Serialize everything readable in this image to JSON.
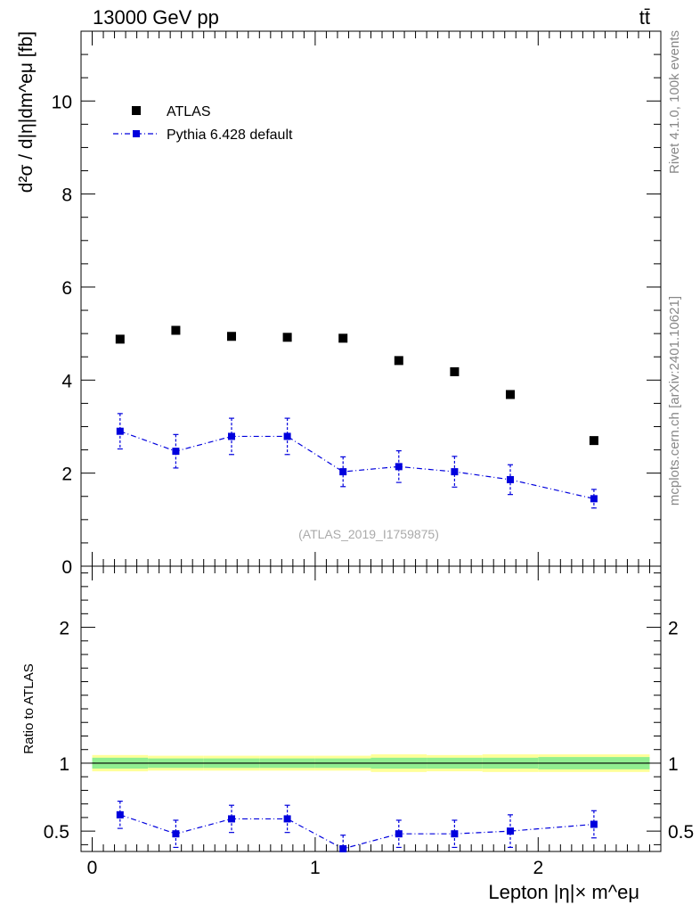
{
  "header": {
    "energy_label": "13000 GeV pp",
    "process_label": "tt̄"
  },
  "side_labels": {
    "rivet": "Rivet 4.1.0,  100k events",
    "source": "mcplots.cern.ch [arXiv:2401.10621]"
  },
  "analysis_label": "(ATLAS_2019_I1759875)",
  "colors": {
    "data": "#000000",
    "mc": "#0000dd",
    "band_inner": "#90ee90",
    "band_outer": "#ffff99"
  },
  "chart_data": [
    {
      "type": "scatter",
      "panel": "main",
      "ylabel": "d²σ / d|η|dm^eμ [fb]",
      "ylim": [
        0,
        11.5
      ],
      "xlim": [
        -0.05,
        2.55
      ],
      "y_ticks": [
        "0",
        "2",
        "4",
        "6",
        "8",
        "10"
      ],
      "legend_position": "top-left",
      "series": [
        {
          "name": "ATLAS",
          "marker": "square",
          "x": [
            0.125,
            0.375,
            0.625,
            0.875,
            1.125,
            1.375,
            1.625,
            1.875,
            2.25
          ],
          "y": [
            4.88,
            5.07,
            4.94,
            4.92,
            4.9,
            4.42,
            4.18,
            3.69,
            2.7
          ]
        },
        {
          "name": "Pythia 6.428 default",
          "marker": "square",
          "line": "dash-dot",
          "x": [
            0.125,
            0.375,
            0.625,
            0.875,
            1.125,
            1.375,
            1.625,
            1.875,
            2.25
          ],
          "y": [
            2.9,
            2.47,
            2.79,
            2.79,
            2.03,
            2.14,
            2.03,
            1.86,
            1.45
          ],
          "yerr": [
            0.38,
            0.36,
            0.39,
            0.39,
            0.32,
            0.34,
            0.33,
            0.32,
            0.2
          ]
        }
      ]
    },
    {
      "type": "scatter",
      "panel": "ratio",
      "ylabel": "Ratio to ATLAS",
      "xlabel": "Lepton |η|× m^eμ",
      "ylim": [
        0.35,
        2.45
      ],
      "xlim": [
        -0.05,
        2.55
      ],
      "y_ticks": [
        "0.5",
        "1",
        "2"
      ],
      "x_ticks": [
        "0",
        "1",
        "2"
      ],
      "band": {
        "x_edges": [
          0,
          0.25,
          0.5,
          0.75,
          1,
          1.25,
          1.5,
          1.75,
          2,
          2.5
        ],
        "inner": [
          0.04,
          0.035,
          0.035,
          0.035,
          0.035,
          0.04,
          0.04,
          0.04,
          0.045
        ],
        "outer": [
          0.06,
          0.055,
          0.055,
          0.055,
          0.055,
          0.065,
          0.06,
          0.065,
          0.065
        ]
      },
      "series": [
        {
          "name": "Pythia 6.428 default",
          "marker": "square",
          "line": "dash-dot",
          "x": [
            0.125,
            0.375,
            0.625,
            0.875,
            1.125,
            1.375,
            1.625,
            1.875,
            2.25
          ],
          "y": [
            0.62,
            0.48,
            0.59,
            0.59,
            0.37,
            0.48,
            0.48,
            0.5,
            0.55
          ],
          "yerr": [
            0.1,
            0.1,
            0.1,
            0.1,
            0.1,
            0.1,
            0.1,
            0.12,
            0.1
          ]
        }
      ]
    }
  ]
}
